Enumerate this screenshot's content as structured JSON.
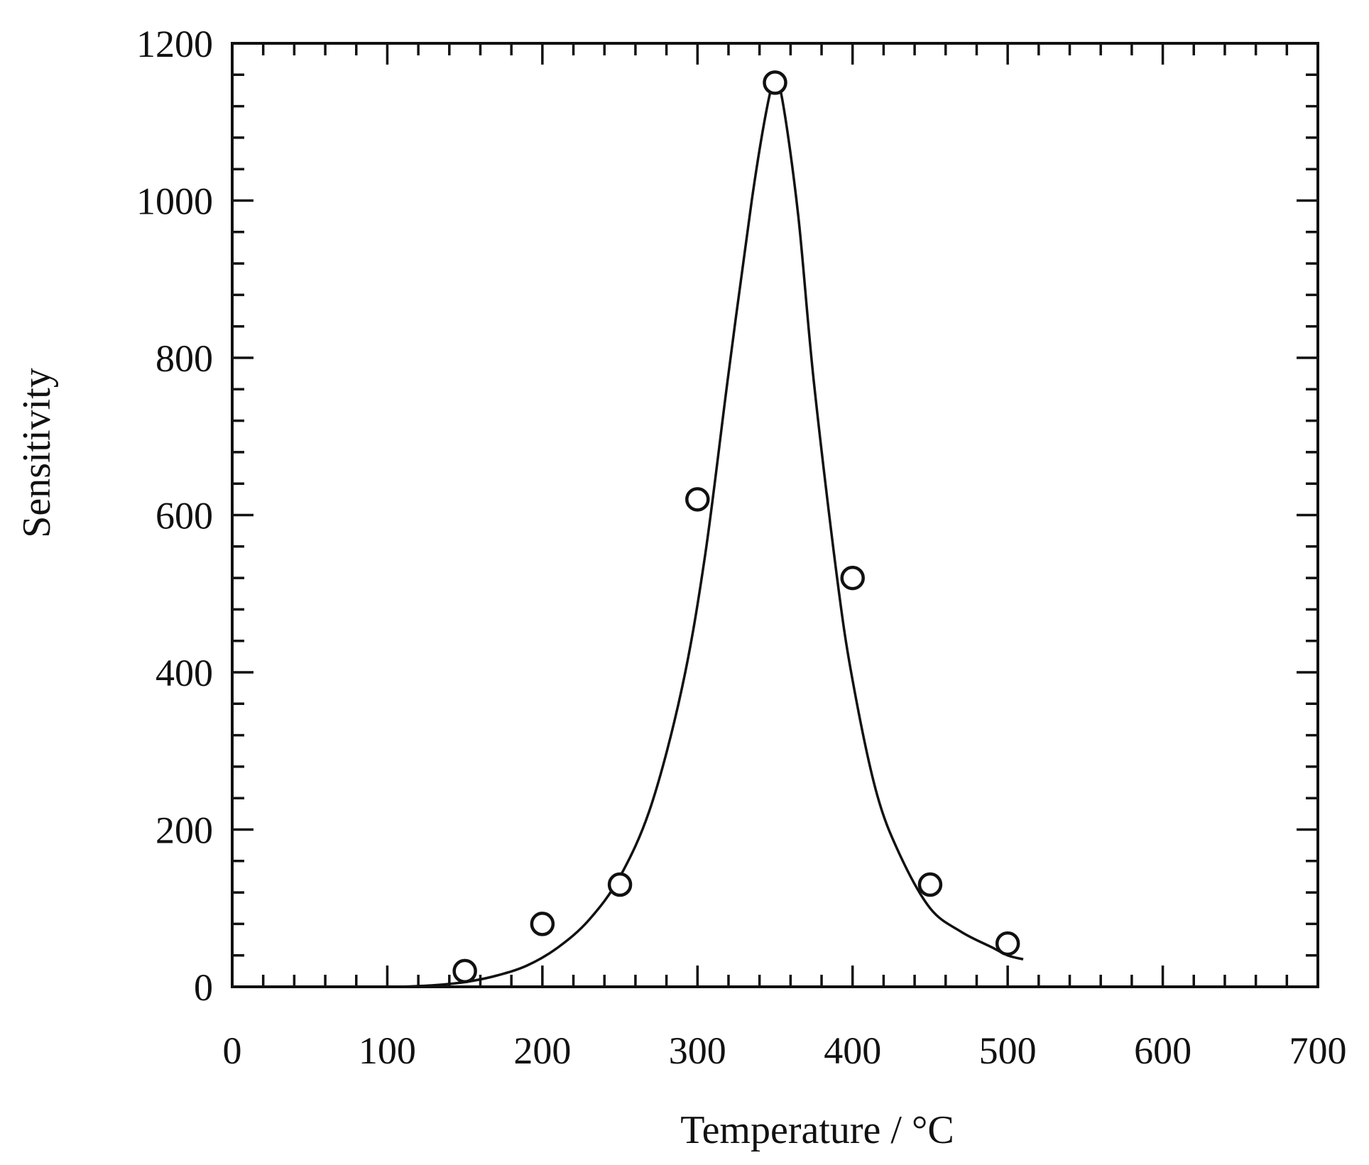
{
  "chart_data": {
    "type": "scatter",
    "title": "",
    "xlabel": "Temperature / °C",
    "ylabel": "Sensitivity",
    "xlim": [
      0,
      700
    ],
    "ylim": [
      0,
      1200
    ],
    "x_ticks": [
      0,
      100,
      200,
      300,
      400,
      500,
      600,
      700
    ],
    "y_ticks": [
      0,
      200,
      400,
      600,
      800,
      1000,
      1200
    ],
    "x_minor_step": 20,
    "y_minor_step": 40,
    "grid": false,
    "legend": "none",
    "series": [
      {
        "style": "open-circle markers",
        "x": [
          150,
          200,
          250,
          300,
          350,
          400,
          450,
          500
        ],
        "y": [
          20,
          80,
          130,
          620,
          1150,
          520,
          130,
          55
        ]
      },
      {
        "style": "smooth fitted line",
        "x": [
          110,
          130,
          150,
          170,
          190,
          210,
          230,
          250,
          270,
          290,
          305,
          320,
          335,
          345,
          350,
          355,
          365,
          375,
          390,
          400,
          415,
          430,
          450,
          470,
          490,
          500,
          510
        ],
        "y": [
          0,
          2,
          6,
          14,
          27,
          50,
          85,
          140,
          230,
          380,
          550,
          780,
          1000,
          1120,
          1150,
          1125,
          980,
          770,
          520,
          390,
          250,
          170,
          100,
          70,
          50,
          40,
          35
        ]
      }
    ]
  }
}
